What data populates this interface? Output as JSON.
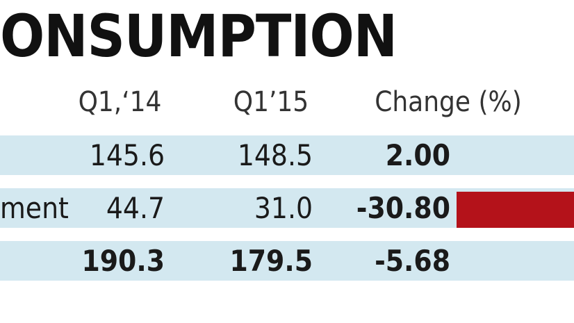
{
  "header": {
    "title": "ONSUMPTION"
  },
  "table": {
    "columns": [
      "Q1,‘14",
      "Q1’15",
      "Change (%)"
    ],
    "rows": [
      {
        "values": [
          "145.6",
          "148.5",
          "2.00"
        ]
      },
      {
        "label": "ment",
        "values": [
          "44.7",
          "31.0",
          "-30.80"
        ]
      },
      {
        "values": [
          "190.3",
          "179.5",
          "-5.68"
        ]
      }
    ]
  }
}
